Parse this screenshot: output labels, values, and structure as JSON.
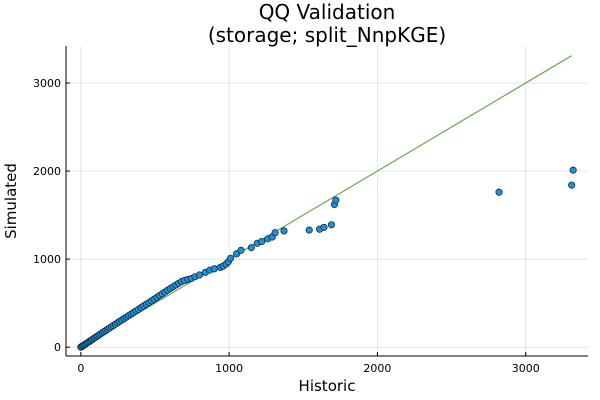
{
  "chart_data": {
    "type": "scatter",
    "title": "QQ Validation",
    "subtitle": "(storage; split_NnpKGE)",
    "xlabel": "Historic",
    "ylabel": "Simulated",
    "xlim": [
      -100,
      3420
    ],
    "ylim": [
      -100,
      3420
    ],
    "xticks": [
      0,
      1000,
      2000,
      3000
    ],
    "yticks": [
      0,
      1000,
      2000,
      3000
    ],
    "xtick_labels": [
      "0",
      "1000",
      "2000",
      "3000"
    ],
    "ytick_labels": [
      "0",
      "1000",
      "2000",
      "3000"
    ],
    "grid": true,
    "legend": "none",
    "colors": {
      "points": "#1f8fd6",
      "reference_line": "#6aa84f"
    },
    "reference_line": {
      "x": [
        0,
        3310
      ],
      "y": [
        0,
        3310
      ]
    },
    "series": [
      {
        "x": [
          0,
          8,
          15,
          22,
          30,
          38,
          46,
          55,
          64,
          73,
          82,
          92,
          102,
          112,
          123,
          134,
          145,
          157,
          169,
          181,
          194,
          207,
          220,
          234,
          248,
          262,
          277,
          292,
          307,
          323,
          339,
          355,
          372,
          389,
          406,
          423,
          441,
          459,
          477,
          495,
          513,
          531,
          549,
          567,
          585,
          603,
          622,
          641,
          660,
          680,
          700,
          722,
          745,
          770,
          800,
          840,
          870,
          900,
          940,
          960,
          980,
          995,
          1010,
          1050,
          1080,
          1150,
          1190,
          1220,
          1260,
          1290,
          1310,
          1370,
          1540,
          1610,
          1640,
          1690,
          1710,
          1720,
          2820,
          3310,
          3320
        ],
        "y": [
          0,
          10,
          17,
          25,
          34,
          43,
          52,
          62,
          72,
          82,
          93,
          104,
          115,
          127,
          139,
          151,
          164,
          177,
          190,
          204,
          218,
          232,
          247,
          262,
          277,
          293,
          309,
          325,
          342,
          359,
          376,
          394,
          412,
          430,
          449,
          468,
          487,
          506,
          526,
          546,
          566,
          586,
          606,
          626,
          646,
          666,
          686,
          706,
          726,
          746,
          758,
          770,
          780,
          800,
          820,
          850,
          875,
          890,
          905,
          920,
          945,
          970,
          1010,
          1060,
          1100,
          1130,
          1180,
          1200,
          1230,
          1250,
          1300,
          1320,
          1330,
          1340,
          1360,
          1390,
          1620,
          1670,
          1760,
          1840,
          2010
        ]
      }
    ]
  }
}
